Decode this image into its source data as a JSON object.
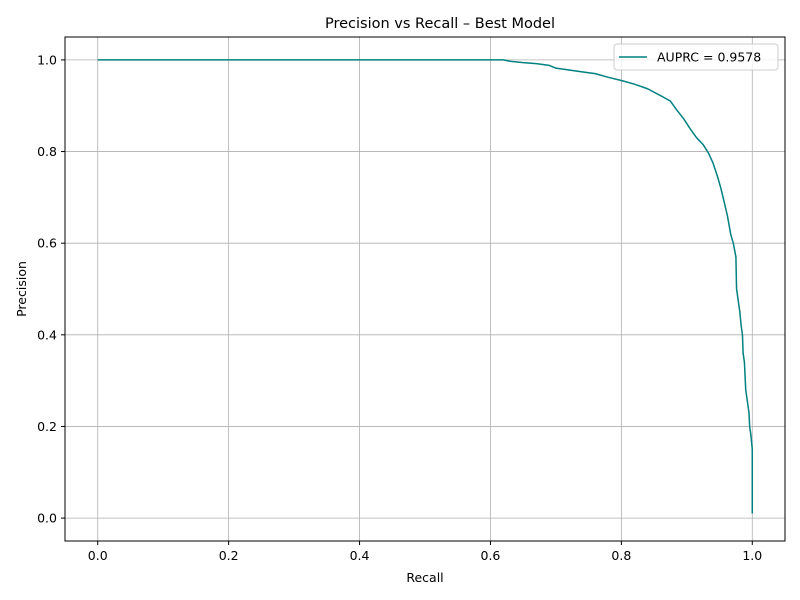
{
  "chart_data": {
    "type": "line",
    "title": "Precision vs Recall – Best Model",
    "xlabel": "Recall",
    "ylabel": "Precision",
    "xlim": [
      -0.05,
      1.05
    ],
    "ylim": [
      -0.05,
      1.05
    ],
    "xticks": [
      "0.0",
      "0.2",
      "0.4",
      "0.6",
      "0.8",
      "1.0"
    ],
    "yticks": [
      "0.0",
      "0.2",
      "0.4",
      "0.6",
      "0.8",
      "1.0"
    ],
    "grid": true,
    "legend_position": "top-right",
    "series": [
      {
        "name": "AUPRC = 0.9578",
        "color": "#008080",
        "points": [
          [
            0.0,
            1.0
          ],
          [
            0.62,
            1.0
          ],
          [
            0.63,
            0.997
          ],
          [
            0.65,
            0.994
          ],
          [
            0.67,
            0.992
          ],
          [
            0.69,
            0.988
          ],
          [
            0.7,
            0.982
          ],
          [
            0.72,
            0.978
          ],
          [
            0.74,
            0.974
          ],
          [
            0.76,
            0.97
          ],
          [
            0.78,
            0.962
          ],
          [
            0.8,
            0.955
          ],
          [
            0.82,
            0.947
          ],
          [
            0.84,
            0.937
          ],
          [
            0.86,
            0.922
          ],
          [
            0.875,
            0.91
          ],
          [
            0.885,
            0.89
          ],
          [
            0.895,
            0.872
          ],
          [
            0.905,
            0.85
          ],
          [
            0.915,
            0.83
          ],
          [
            0.925,
            0.815
          ],
          [
            0.933,
            0.797
          ],
          [
            0.94,
            0.775
          ],
          [
            0.947,
            0.745
          ],
          [
            0.952,
            0.72
          ],
          [
            0.957,
            0.69
          ],
          [
            0.962,
            0.66
          ],
          [
            0.967,
            0.62
          ],
          [
            0.971,
            0.6
          ],
          [
            0.975,
            0.57
          ],
          [
            0.976,
            0.5
          ],
          [
            0.978,
            0.48
          ],
          [
            0.981,
            0.45
          ],
          [
            0.983,
            0.42
          ],
          [
            0.985,
            0.4
          ],
          [
            0.986,
            0.36
          ],
          [
            0.988,
            0.34
          ],
          [
            0.989,
            0.31
          ],
          [
            0.99,
            0.28
          ],
          [
            0.993,
            0.25
          ],
          [
            0.995,
            0.23
          ],
          [
            0.996,
            0.2
          ],
          [
            0.998,
            0.18
          ],
          [
            1.0,
            0.15
          ],
          [
            1.0,
            0.01
          ]
        ]
      }
    ]
  }
}
